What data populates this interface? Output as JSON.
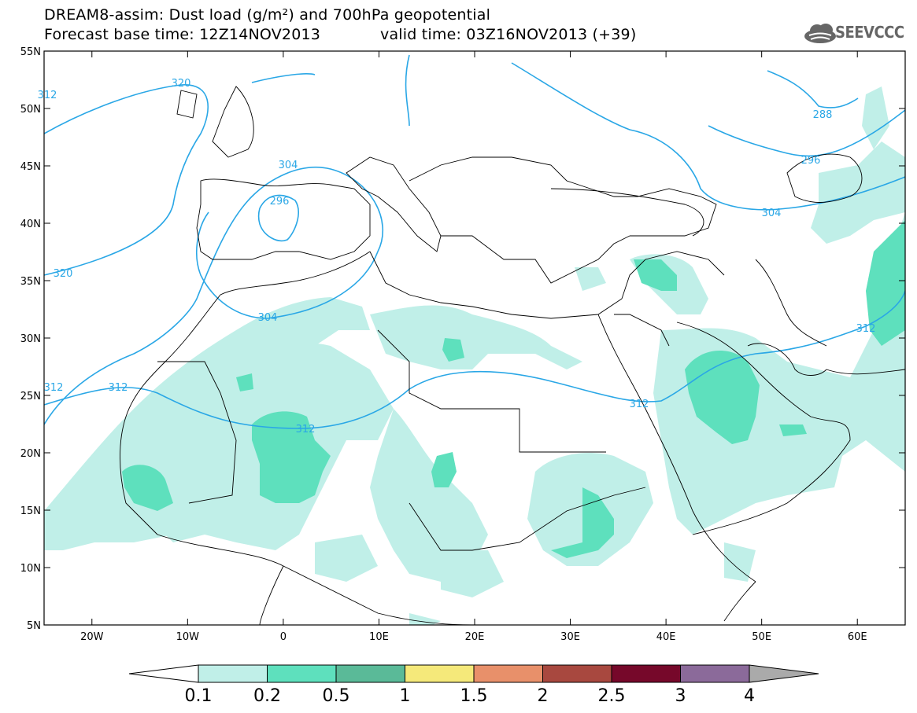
{
  "title_line1": "DREAM8-assim: Dust load (g/m²) and 700hPa geopotential",
  "title_base": "Forecast base time: 12Z14NOV2013",
  "title_valid": "valid time: 03Z16NOV2013 (+39)",
  "logo": {
    "text": "SEEVCCC",
    "icon": "cloud-logo-icon"
  },
  "map": {
    "lon_range": [
      -25,
      65
    ],
    "lat_range": [
      5,
      55
    ],
    "lat_ticks": [
      "55N",
      "50N",
      "45N",
      "40N",
      "35N",
      "30N",
      "25N",
      "20N",
      "15N",
      "10N",
      "5N"
    ],
    "lon_ticks": [
      "20W",
      "10W",
      "0",
      "10E",
      "20E",
      "30E",
      "40E",
      "50E",
      "60E"
    ],
    "contour_labels": [
      "312",
      "320",
      "304",
      "296",
      "304",
      "288",
      "296",
      "304",
      "312",
      "312",
      "312",
      "312",
      "320",
      "312"
    ],
    "colors": {
      "contour": "#2aa7e6",
      "coast": "#000000"
    }
  },
  "colorbar": {
    "labels": [
      "0.1",
      "0.2",
      "0.5",
      "1",
      "1.5",
      "2",
      "2.5",
      "3",
      "4"
    ],
    "colors": [
      "#ffffff",
      "#c0efe8",
      "#5ee0bd",
      "#5aba98",
      "#f5e97a",
      "#e8906a",
      "#a8483f",
      "#76082a",
      "#8b6a9a",
      "#aaaaaa"
    ]
  }
}
